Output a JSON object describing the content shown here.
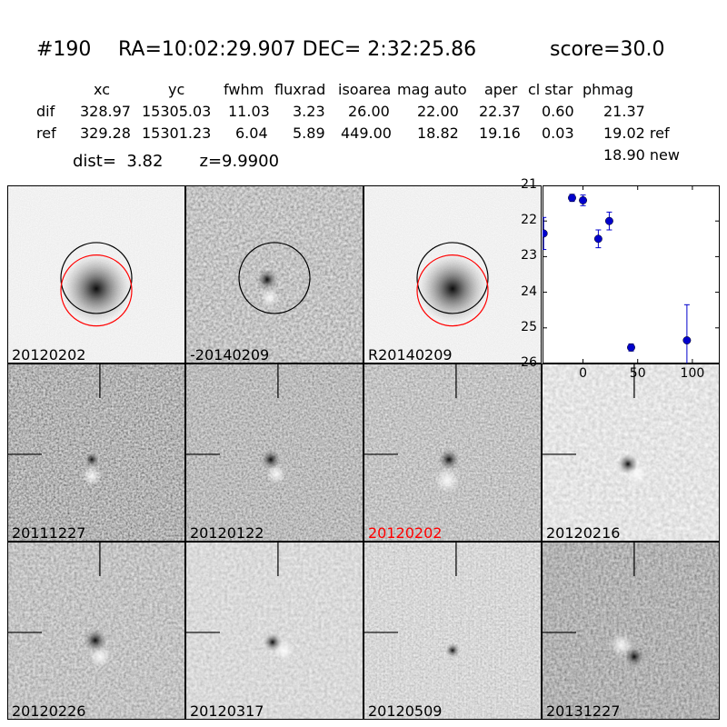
{
  "title": {
    "id": "#190",
    "coords": "RA=10:02:29.907 DEC= 2:32:25.86",
    "score": "score=30.0"
  },
  "table": {
    "headers": [
      "xc",
      "yc",
      "fwhm",
      "fluxrad",
      "isoarea",
      "mag auto",
      "aper",
      "cl star",
      "phmag"
    ],
    "rows": [
      {
        "label": "dif",
        "values": [
          "328.97",
          "15305.03",
          "11.03",
          "3.23",
          "26.00",
          "22.00",
          "22.37",
          "0.60",
          "21.37"
        ]
      },
      {
        "label": "ref",
        "values": [
          "329.28",
          "15301.23",
          "6.04",
          "5.89",
          "449.00",
          "18.82",
          "19.16",
          "0.03",
          "19.02 ref"
        ]
      }
    ],
    "new_phmag": "18.90 new"
  },
  "dist_line": "dist=  3.82       z=9.9900",
  "stamps_top": [
    {
      "label": "20120202"
    },
    {
      "label": "-20140209"
    },
    {
      "label": "R20140209"
    }
  ],
  "stamps_grid": [
    {
      "label": "20111227",
      "highlight": false
    },
    {
      "label": "20120122",
      "highlight": false
    },
    {
      "label": "20120202",
      "highlight": true
    },
    {
      "label": "20120216",
      "highlight": false
    },
    {
      "label": "20120226",
      "highlight": false
    },
    {
      "label": "20120317",
      "highlight": false
    },
    {
      "label": "20120509",
      "highlight": false
    },
    {
      "label": "20131227",
      "highlight": false
    }
  ],
  "colors": {
    "highlight": "#ff0000",
    "point": "#0000cc",
    "circle_ref": "#ff0000",
    "circle_dif": "#000000"
  },
  "chart_data": {
    "type": "scatter",
    "title": "",
    "xlabel": "",
    "ylabel": "",
    "xlim": [
      -37,
      125
    ],
    "ylim": [
      26,
      21
    ],
    "y_inverted": true,
    "xticks": [
      0,
      50,
      100
    ],
    "yticks": [
      21,
      22,
      23,
      24,
      25,
      26
    ],
    "points": [
      {
        "x": -36,
        "y": 22.35,
        "err": 0.45
      },
      {
        "x": -10,
        "y": 21.35,
        "err": 0.1
      },
      {
        "x": 0,
        "y": 21.42,
        "err": 0.15
      },
      {
        "x": 14,
        "y": 22.5,
        "err": 0.25
      },
      {
        "x": 24,
        "y": 22.0,
        "err": 0.25
      },
      {
        "x": 44,
        "y": 25.55,
        "err": 0.1
      },
      {
        "x": 95,
        "y": 25.35,
        "err": 1.0
      }
    ]
  }
}
